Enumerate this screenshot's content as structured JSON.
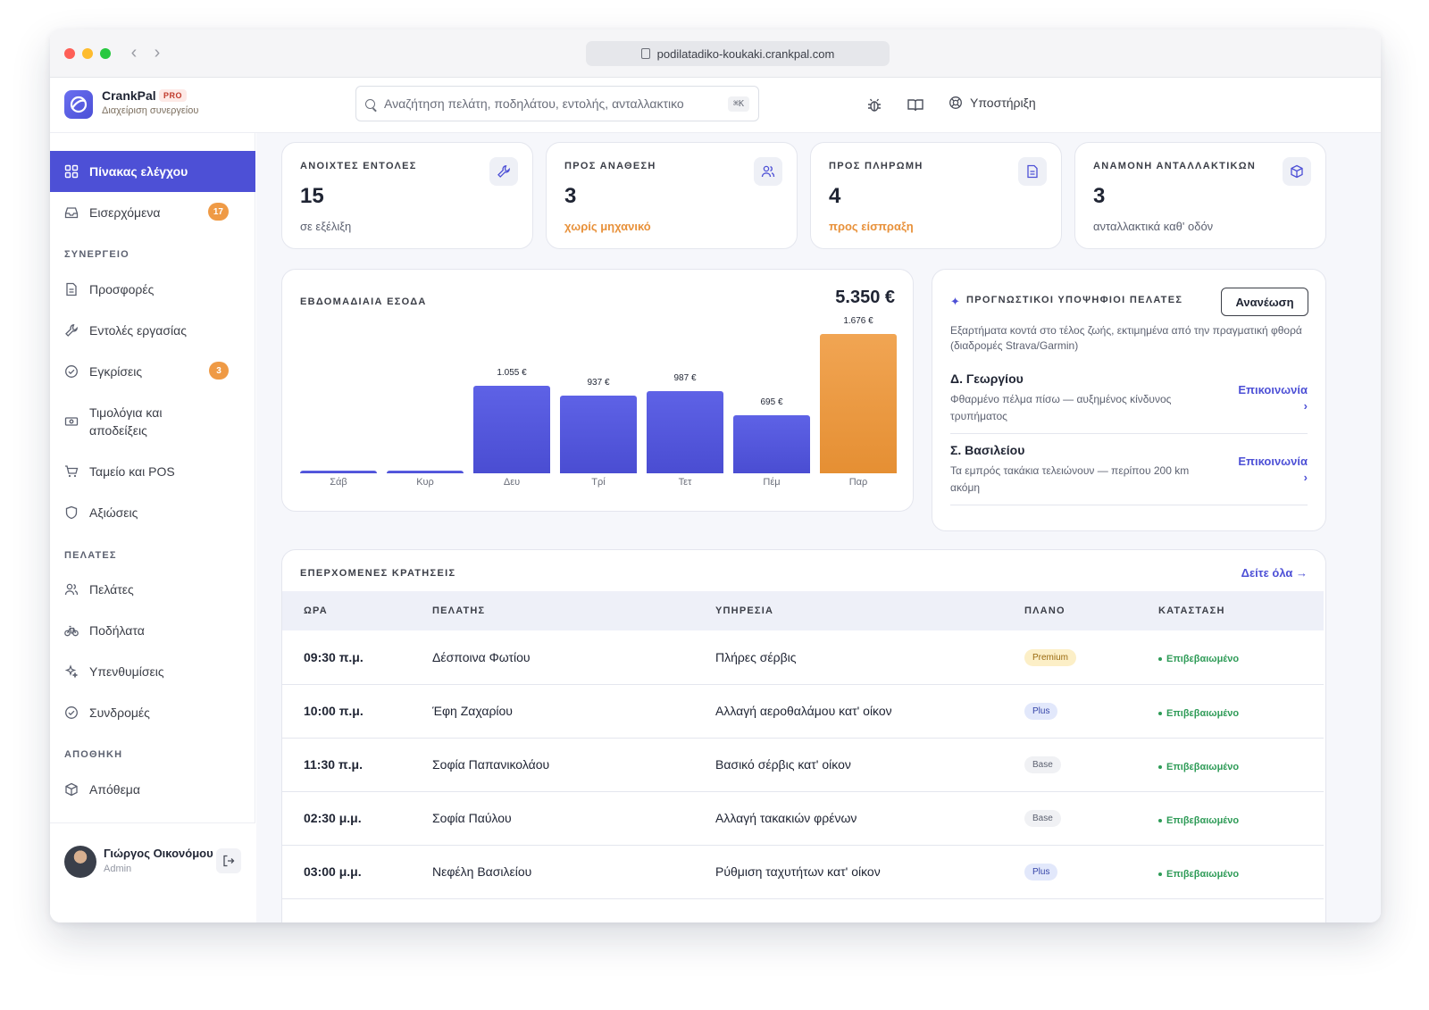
{
  "browser": {
    "url": "podilatadiko-koukaki.crankpal.com"
  },
  "header": {
    "brand": "CrankPal",
    "badge": "PRO",
    "subtitle": "Διαχείριση συνεργείου",
    "search_placeholder": "Αναζήτηση πελάτη, ποδηλάτου, εντολής, ανταλλακτικο",
    "shortcut": "⌘K",
    "support_label": "Υποστήριξη"
  },
  "sidebar": {
    "dashboard": "Πίνακας ελέγχου",
    "inbox": "Εισερχόμενα",
    "inbox_badge": "17",
    "section_workshop": "ΣΥΝΕΡΓΕΙΟ",
    "quotes": "Προσφορές",
    "work_orders": "Εντολές εργασίας",
    "approvals": "Εγκρίσεις",
    "approvals_badge": "3",
    "invoices": "Τιμολόγια και αποδείξεις",
    "pos": "Ταμείο και POS",
    "claims": "Αξιώσεις",
    "section_customers": "ΠΕΛΑΤΕΣ",
    "customers": "Πελάτες",
    "bikes": "Ποδήλατα",
    "reminders": "Υπενθυμίσεις",
    "subscriptions": "Συνδρομές",
    "section_warehouse": "ΑΠΟΘΗΚΗ",
    "stock": "Απόθεμα",
    "user_name": "Γιώργος Οικονόμου",
    "user_role": "Admin"
  },
  "kpis": [
    {
      "label": "ΑΝΟΙΧΤΕΣ ΕΝΤΟΛΕΣ",
      "value": "15",
      "sub": "σε εξέλιξη",
      "icon": "wrench-icon"
    },
    {
      "label": "ΠΡΟΣ ΑΝΑΘΕΣΗ",
      "value": "3",
      "sub": "χωρίς μηχανικό",
      "icon": "users-icon"
    },
    {
      "label": "ΠΡΟΣ ΠΛΗΡΩΜΗ",
      "value": "4",
      "sub": "προς είσπραξη",
      "icon": "document-icon"
    },
    {
      "label": "ΑΝΑΜΟΝΗ ΑΝΤΑΛΛΑΚΤΙΚΩΝ",
      "value": "3",
      "sub": "ανταλλακτικά καθ' οδόν",
      "icon": "box-icon"
    }
  ],
  "revenue": {
    "title": "ΕΒΔΟΜΑΔΙΑΙΑ ΕΣΟΔΑ",
    "total": "5.350 €"
  },
  "chart_data": {
    "type": "bar",
    "title": "ΕΒΔΟΜΑΔΙΑΙΑ ΕΣΟΔΑ",
    "categories": [
      "Σάβ",
      "Κυρ",
      "Δευ",
      "Τρί",
      "Τετ",
      "Πέμ",
      "Παρ"
    ],
    "values": [
      0,
      0,
      1055,
      937,
      987,
      695,
      1676
    ],
    "value_labels": [
      "",
      "",
      "1.055 €",
      "937 €",
      "987 €",
      "695 €",
      "1.676 €"
    ],
    "highlight_index": 6,
    "colors": {
      "bar": "#4d50d6",
      "highlight": "#eb9b45"
    }
  },
  "predictive": {
    "title": "ΠΡΟΓΝΩΣΤΙΚΟΙ ΥΠΟΨΗΦΙΟΙ ΠΕΛΑΤΕΣ",
    "refresh_label": "Ανανέωση",
    "description": "Εξαρτήματα κοντά στο τέλος ζωής, εκτιμημένα από την πραγματική φθορά (διαδρομές Strava/Garmin)",
    "leads": [
      {
        "name": "Δ. Γεωργίου",
        "desc": "Φθαρμένο πέλμα πίσω — αυξημένος κίνδυνος τρυπήματος",
        "action": "Επικοινωνία ›"
      },
      {
        "name": "Σ. Βασιλείου",
        "desc": "Τα εμπρός τακάκια τελειώνουν — περίπου 200 km ακόμη",
        "action": "Επικοινωνία ›"
      }
    ]
  },
  "bookings": {
    "title": "ΕΠΕΡΧΟΜΕΝΕΣ ΚΡΑΤΗΣΕΙΣ",
    "see_all": "Δείτε όλα →",
    "columns": [
      "ΩΡΑ",
      "ΠΕΛΑΤΗΣ",
      "ΥΠΗΡΕΣΙΑ",
      "ΠΛΑΝΟ",
      "ΚΑΤΑΣΤΑΣΗ"
    ],
    "rows": [
      {
        "time": "09:30 π.μ.",
        "customer": "Δέσποινα Φωτίου",
        "service": "Πλήρες σέρβις",
        "plan": "Premium",
        "status": "Επιβεβαιωμένο"
      },
      {
        "time": "10:00 π.μ.",
        "customer": "Έφη Ζαχαρίου",
        "service": "Αλλαγή αεροθαλάμου κατ' οίκον",
        "plan": "Plus",
        "status": "Επιβεβαιωμένο"
      },
      {
        "time": "11:30 π.μ.",
        "customer": "Σοφία Παπανικολάου",
        "service": "Βασικό σέρβις κατ' οίκον",
        "plan": "Base",
        "status": "Επιβεβαιωμένο"
      },
      {
        "time": "02:30 μ.μ.",
        "customer": "Σοφία Παύλου",
        "service": "Αλλαγή τακακιών φρένων",
        "plan": "Base",
        "status": "Επιβεβαιωμένο"
      },
      {
        "time": "03:00 μ.μ.",
        "customer": "Νεφέλη Βασιλείου",
        "service": "Ρύθμιση ταχυτήτων κατ' οίκον",
        "plan": "Plus",
        "status": "Επιβεβαιωμένο"
      }
    ]
  }
}
